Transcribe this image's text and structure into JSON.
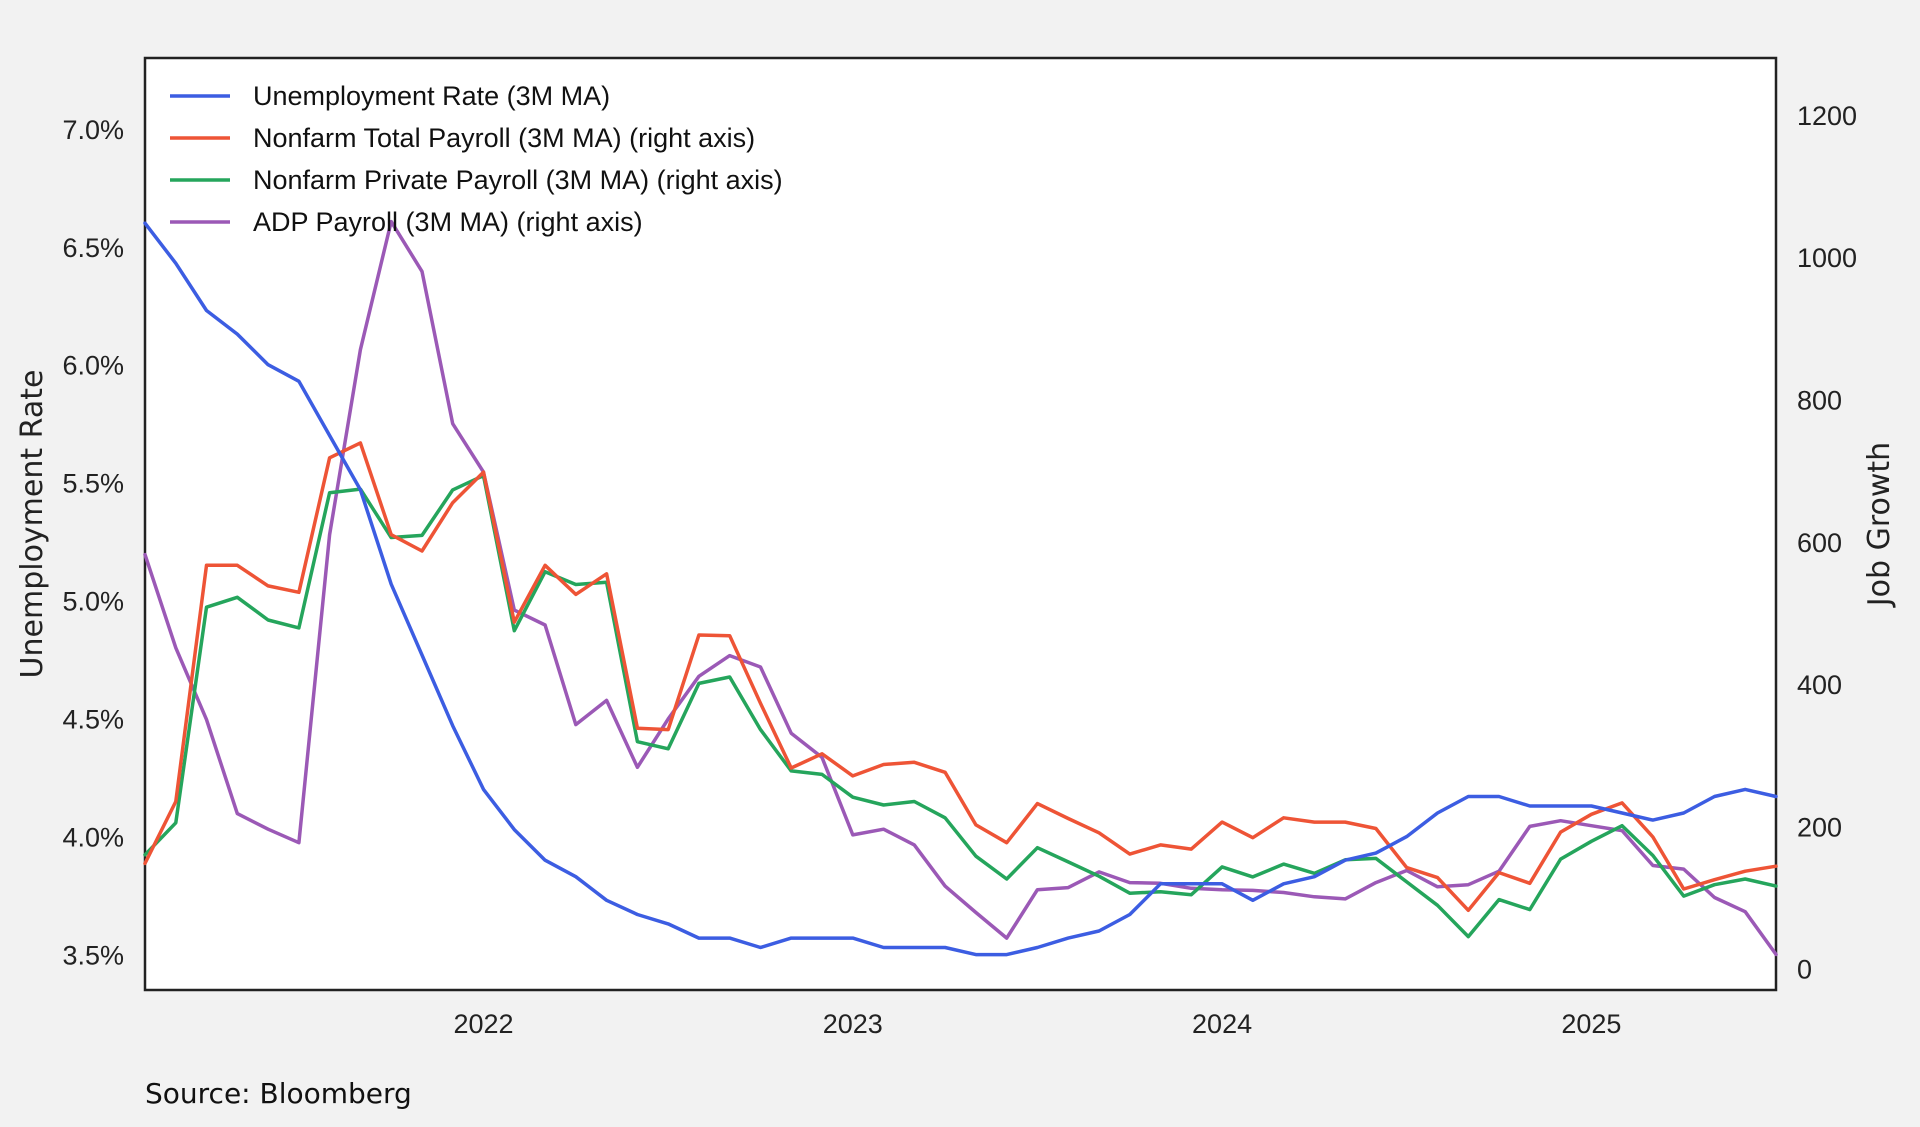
{
  "source": "Source: Bloomberg",
  "chart_data": {
    "type": "line",
    "left_axis": {
      "label": "Unemployment Rate",
      "ylim": [
        3.35,
        7.3
      ],
      "ticks": [
        3.5,
        4.0,
        4.5,
        5.0,
        5.5,
        6.0,
        6.5,
        7.0
      ],
      "tick_labels": [
        "3.5%",
        "4.0%",
        "4.5%",
        "5.0%",
        "5.5%",
        "6.0%",
        "6.5%",
        "7.0%"
      ]
    },
    "right_axis": {
      "label": "Job Growth",
      "ylim": [
        -30,
        1280
      ],
      "ticks": [
        0,
        200,
        400,
        600,
        800,
        1000,
        1200
      ],
      "tick_labels": [
        "0",
        "200",
        "400",
        "600",
        "800",
        "1000",
        "1200"
      ]
    },
    "x_axis": {
      "tick_labels": [
        "2022",
        "2023",
        "2024",
        "2025"
      ],
      "tick_positions": [
        11,
        23,
        35,
        47
      ]
    },
    "x_range": [
      0,
      53
    ],
    "legend": "top-left",
    "grid": false,
    "series": [
      {
        "name": "Unemployment Rate (3M MA)",
        "axis": "left",
        "color": "#3c5de2",
        "values": [
          6.6,
          6.43,
          6.23,
          6.13,
          6.0,
          5.93,
          5.7,
          5.47,
          5.07,
          4.77,
          4.47,
          4.2,
          4.03,
          3.9,
          3.83,
          3.73,
          3.67,
          3.63,
          3.57,
          3.57,
          3.53,
          3.57,
          3.57,
          3.57,
          3.53,
          3.53,
          3.53,
          3.5,
          3.5,
          3.53,
          3.57,
          3.6,
          3.67,
          3.8,
          3.8,
          3.8,
          3.73,
          3.8,
          3.83,
          3.9,
          3.93,
          4.0,
          4.1,
          4.17,
          4.17,
          4.13,
          4.13,
          4.13,
          4.1,
          4.07,
          4.1,
          4.17,
          4.2,
          4.17
        ]
      },
      {
        "name": "Nonfarm Total Payroll (3M MA) (right axis)",
        "axis": "right",
        "color": "#ee5436",
        "values": [
          148,
          235,
          567,
          567,
          538,
          529,
          718,
          739,
          610,
          587,
          655,
          698,
          487,
          567,
          526,
          555,
          338,
          336,
          469,
          468,
          373,
          282,
          302,
          271,
          287,
          290,
          276,
          202,
          177,
          232,
          211,
          191,
          161,
          174,
          168,
          206,
          184,
          212,
          206,
          206,
          197,
          142,
          128,
          82,
          135,
          120,
          192,
          217,
          233,
          185,
          112,
          125,
          137,
          144
        ]
      },
      {
        "name": "Nonfarm Private Payroll (3M MA) (right axis)",
        "axis": "right",
        "color": "#25a55c",
        "values": [
          160,
          205,
          508,
          522,
          490,
          479,
          669,
          674,
          606,
          609,
          673,
          693,
          475,
          558,
          540,
          543,
          319,
          309,
          401,
          410,
          336,
          278,
          273,
          241,
          230,
          235,
          212,
          158,
          126,
          170,
          150,
          130,
          106,
          108,
          104,
          143,
          129,
          147,
          134,
          153,
          155,
          122,
          89,
          45,
          97,
          83,
          154,
          179,
          201,
          159,
          102,
          118,
          126,
          116
        ]
      },
      {
        "name": "ADP Payroll (3M MA) (right axis)",
        "axis": "right",
        "color": "#9b59b6",
        "values": [
          582,
          451,
          350,
          218,
          196,
          177,
          610,
          870,
          1050,
          980,
          766,
          698,
          504,
          483,
          343,
          377,
          283,
          351,
          411,
          440,
          424,
          331,
          297,
          188,
          196,
          174,
          116,
          79,
          43,
          111,
          114,
          136,
          121,
          120,
          113,
          111,
          110,
          107,
          101,
          98,
          121,
          138,
          115,
          118,
          137,
          200,
          208,
          201,
          194,
          145,
          140,
          100,
          80,
          20
        ]
      }
    ]
  }
}
